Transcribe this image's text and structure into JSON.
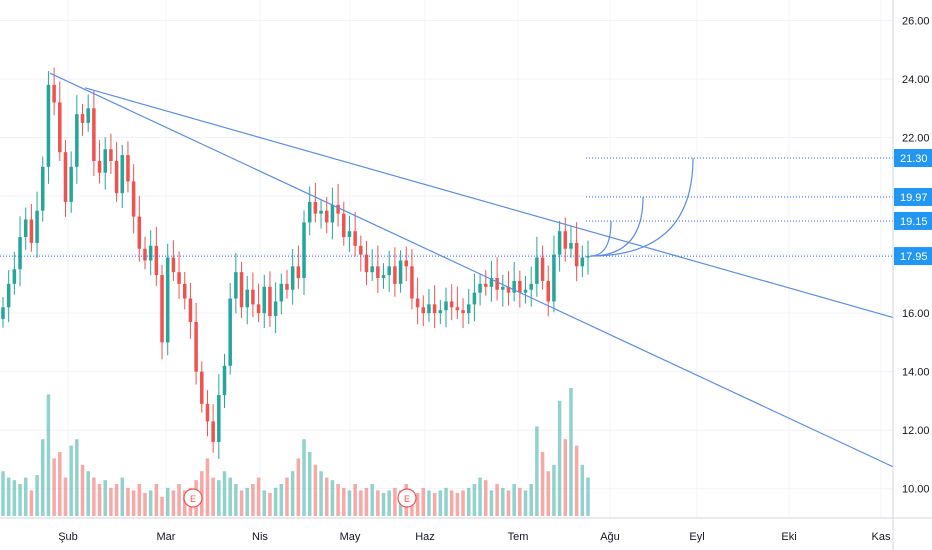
{
  "chart_data": {
    "type": "candlestick",
    "grid": true,
    "y_axis": {
      "position": "right",
      "ticks": [
        10,
        12,
        14,
        16,
        18,
        20,
        22,
        24,
        26
      ],
      "tick_labels": [
        "10.00",
        "12.00",
        "14.00",
        "16.00",
        "18.00",
        "20.00",
        "22.00",
        "24.00",
        "26.00"
      ],
      "range": [
        9.0,
        26.7
      ]
    },
    "x_axis": {
      "tick_labels": [
        "Şub",
        "Mar",
        "Nis",
        "May",
        "Haz",
        "Tem",
        "Ağu",
        "Eyl",
        "Eki",
        "Kas"
      ]
    },
    "price_labels": [
      {
        "value": 21.3,
        "text": "21.30"
      },
      {
        "value": 19.97,
        "text": "19.97"
      },
      {
        "value": 19.15,
        "text": "19.15"
      },
      {
        "value": 17.95,
        "text": "17.95"
      }
    ],
    "earnings_markers": [
      {
        "text": "E",
        "month": "Mar"
      },
      {
        "text": "E",
        "month": "Haz"
      }
    ],
    "closes": [
      16.2,
      17.0,
      17.5,
      18.6,
      19.2,
      18.4,
      19.5,
      21.0,
      23.8,
      23.2,
      21.5,
      19.8,
      21.0,
      22.8,
      22.5,
      23.0,
      21.2,
      20.8,
      21.6,
      21.2,
      20.1,
      21.4,
      20.5,
      19.3,
      18.2,
      17.8,
      18.3,
      17.3,
      15.0,
      17.9,
      17.4,
      17.0,
      16.5,
      15.7,
      14.0,
      12.9,
      12.3,
      11.6,
      13.2,
      14.2,
      16.5,
      17.4,
      16.2,
      16.8,
      16.3,
      16.0,
      16.9,
      15.9,
      16.4,
      17.0,
      16.8,
      17.6,
      17.2,
      19.1,
      19.8,
      19.4,
      19.5,
      19.1,
      19.7,
      19.4,
      18.6,
      18.8,
      18.3,
      18.0,
      17.4,
      17.6,
      17.2,
      17.3,
      17.6,
      17.0,
      17.8,
      17.6,
      16.5,
      16.2,
      16.0,
      16.3,
      16.0,
      16.1,
      16.4,
      16.2,
      16.1,
      16.0,
      16.3,
      16.7,
      17.0,
      16.9,
      17.2,
      16.8,
      16.9,
      16.7,
      17.1,
      16.7,
      16.8,
      17.0,
      17.9,
      17.1,
      16.4,
      18.0,
      18.8,
      18.2,
      18.4,
      17.6,
      17.9,
      17.95
    ],
    "volume_relative": [
      0.35,
      0.3,
      0.28,
      0.25,
      0.3,
      0.2,
      0.32,
      0.6,
      0.95,
      0.45,
      0.5,
      0.3,
      0.55,
      0.6,
      0.4,
      0.35,
      0.3,
      0.25,
      0.28,
      0.22,
      0.25,
      0.3,
      0.22,
      0.2,
      0.25,
      0.18,
      0.2,
      0.25,
      0.15,
      0.22,
      0.2,
      0.25,
      0.2,
      0.22,
      0.28,
      0.35,
      0.45,
      0.3,
      0.28,
      0.35,
      0.3,
      0.25,
      0.2,
      0.22,
      0.25,
      0.3,
      0.2,
      0.18,
      0.22,
      0.25,
      0.3,
      0.35,
      0.45,
      0.6,
      0.5,
      0.4,
      0.35,
      0.3,
      0.28,
      0.25,
      0.22,
      0.2,
      0.25,
      0.2,
      0.22,
      0.25,
      0.2,
      0.18,
      0.2,
      0.22,
      0.2,
      0.25,
      0.2,
      0.18,
      0.22,
      0.2,
      0.18,
      0.2,
      0.22,
      0.2,
      0.18,
      0.2,
      0.22,
      0.25,
      0.3,
      0.28,
      0.2,
      0.25,
      0.22,
      0.2,
      0.25,
      0.22,
      0.2,
      0.25,
      0.7,
      0.5,
      0.35,
      0.4,
      0.9,
      0.6,
      1.0,
      0.55,
      0.4,
      0.3
    ]
  }
}
